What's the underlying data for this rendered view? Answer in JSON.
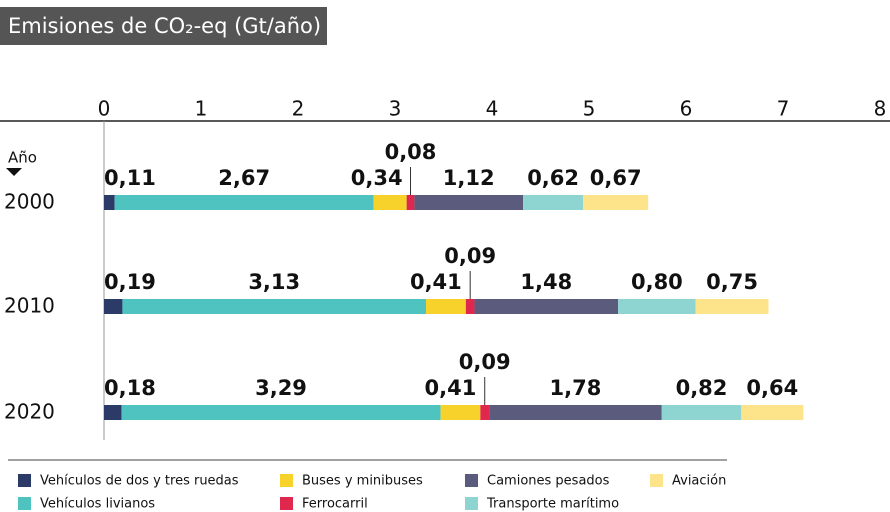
{
  "chart_data": {
    "type": "stacked_barh",
    "title": "Emisiones de CO₂-eq (Gt/año)",
    "ylabel": "Año",
    "categories": [
      "2000",
      "2010",
      "2020"
    ],
    "series": [
      {
        "name": "Vehículos de dos y tres ruedas",
        "color": "#2b3a67",
        "values": [
          0.11,
          0.19,
          0.18
        ],
        "value_labels": [
          "0,11",
          "0,19",
          "0,18"
        ]
      },
      {
        "name": "Vehículos livianos",
        "color": "#4fc3bf",
        "values": [
          2.67,
          3.13,
          3.29
        ],
        "value_labels": [
          "2,67",
          "3,13",
          "3,29"
        ]
      },
      {
        "name": "Buses y minibuses",
        "color": "#f6d22a",
        "values": [
          0.34,
          0.41,
          0.41
        ],
        "value_labels": [
          "0,34",
          "0,41",
          "0,41"
        ]
      },
      {
        "name": "Ferrocarril",
        "color": "#e0284e",
        "values": [
          0.08,
          0.09,
          0.09
        ],
        "value_labels": [
          "0,08",
          "0,09",
          "0,09"
        ]
      },
      {
        "name": "Camiones pesados",
        "color": "#5b5b7d",
        "values": [
          1.12,
          1.48,
          1.78
        ],
        "value_labels": [
          "1,12",
          "1,48",
          "1,78"
        ]
      },
      {
        "name": "Transporte marítimo",
        "color": "#8ed5d1",
        "values": [
          0.62,
          0.8,
          0.82
        ],
        "value_labels": [
          "0,62",
          "0,80",
          "0,82"
        ]
      },
      {
        "name": "Aviación",
        "color": "#fde48a",
        "values": [
          0.67,
          0.75,
          0.64
        ],
        "value_labels": [
          "0,67",
          "0,75",
          "0,64"
        ]
      }
    ],
    "xlim": [
      0,
      8
    ],
    "xticks": [
      0,
      1,
      2,
      3,
      4,
      5,
      6,
      7,
      8
    ]
  }
}
